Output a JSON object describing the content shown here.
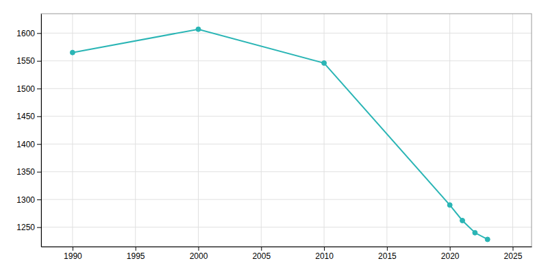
{
  "chart_data": {
    "type": "line",
    "x": [
      1990,
      2000,
      2010,
      2020,
      2021,
      2022,
      2023
    ],
    "values": [
      1565,
      1607,
      1546,
      1290,
      1262,
      1240,
      1228
    ],
    "color": "#2ab5b5",
    "marker": "circle",
    "xlim": [
      1987.5,
      2026.5
    ],
    "ylim": [
      1215,
      1635
    ],
    "xticks": [
      1990,
      1995,
      2000,
      2005,
      2010,
      2015,
      2020,
      2025
    ],
    "yticks": [
      1250,
      1300,
      1350,
      1400,
      1450,
      1500,
      1550,
      1600
    ],
    "grid": true
  }
}
